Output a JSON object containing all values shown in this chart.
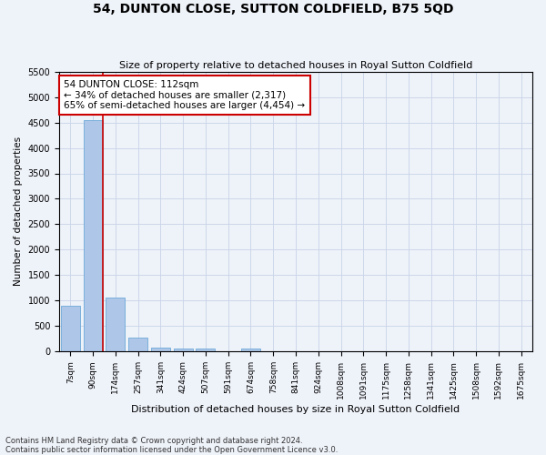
{
  "title": "54, DUNTON CLOSE, SUTTON COLDFIELD, B75 5QD",
  "subtitle": "Size of property relative to detached houses in Royal Sutton Coldfield",
  "xlabel": "Distribution of detached houses by size in Royal Sutton Coldfield",
  "ylabel": "Number of detached properties",
  "footer_line1": "Contains HM Land Registry data © Crown copyright and database right 2024.",
  "footer_line2": "Contains public sector information licensed under the Open Government Licence v3.0.",
  "annotation_line1": "54 DUNTON CLOSE: 112sqm",
  "annotation_line2": "← 34% of detached houses are smaller (2,317)",
  "annotation_line3": "65% of semi-detached houses are larger (4,454) →",
  "bar_color": "#aec6e8",
  "bar_edge_color": "#5a9fd4",
  "vline_color": "#cc0000",
  "annotation_box_color": "#cc0000",
  "background_color": "#eef2f9",
  "categories": [
    "7sqm",
    "90sqm",
    "174sqm",
    "257sqm",
    "341sqm",
    "424sqm",
    "507sqm",
    "591sqm",
    "674sqm",
    "758sqm",
    "841sqm",
    "924sqm",
    "1008sqm",
    "1091sqm",
    "1175sqm",
    "1258sqm",
    "1341sqm",
    "1425sqm",
    "1508sqm",
    "1592sqm",
    "1675sqm"
  ],
  "values": [
    900,
    4540,
    1050,
    270,
    80,
    60,
    50,
    0,
    55,
    0,
    0,
    0,
    0,
    0,
    0,
    0,
    0,
    0,
    0,
    0,
    0
  ],
  "ylim": [
    0,
    5500
  ],
  "yticks": [
    0,
    500,
    1000,
    1500,
    2000,
    2500,
    3000,
    3500,
    4000,
    4500,
    5000,
    5500
  ],
  "grid_color": "#c8d4e8",
  "vline_x_index": 1.42
}
